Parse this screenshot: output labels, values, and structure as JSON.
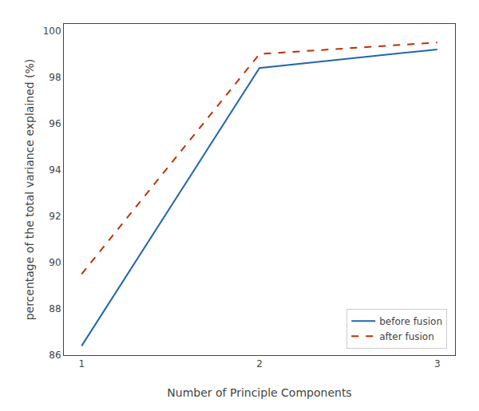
{
  "chart_data": {
    "type": "line",
    "x": [
      1,
      2,
      3
    ],
    "series": [
      {
        "name": "before fusion",
        "color": "#2166ac",
        "values": [
          86.4,
          98.4,
          99.2
        ],
        "line_style": "solid"
      },
      {
        "name": "after fusion",
        "color": "#c03000",
        "values": [
          89.5,
          99.0,
          99.5
        ],
        "line_style": "dashed"
      }
    ],
    "xlabel": "Number of Principle Components",
    "ylabel": "percentage of the total variance explained (%)",
    "xlim": [
      0.9,
      3.1
    ],
    "ylim": [
      86,
      100.3
    ],
    "xticks": [
      1,
      2,
      3
    ],
    "yticks": [
      86,
      88,
      90,
      92,
      94,
      96,
      98,
      100
    ],
    "grid": false,
    "legend": "lower right"
  }
}
